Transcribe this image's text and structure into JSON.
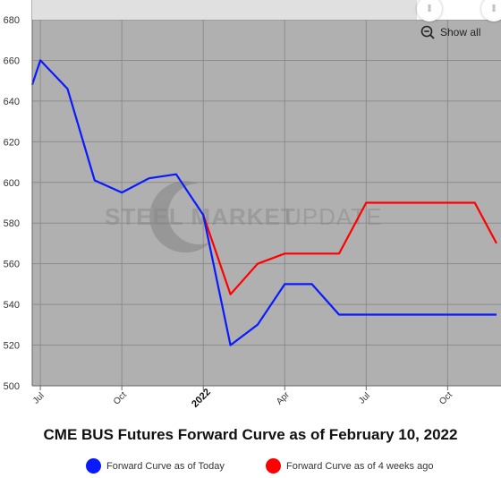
{
  "title": "CME BUS Futures Forward Curve as of February 10, 2022",
  "show_all_label": "Show all",
  "watermark": {
    "text_bold": "STEEL MARKET",
    "text_light": " UPDATE"
  },
  "colors": {
    "today": "#0a1aff",
    "four_weeks": "#ff0000",
    "plot_bg": "#b0b0b0",
    "grid": "#8c8c8c"
  },
  "chart_data": {
    "type": "line",
    "title": "CME BUS Futures Forward Curve as of February 10, 2022",
    "xlabel": "",
    "ylabel": "",
    "ylim": [
      500,
      680
    ],
    "y_ticks": [
      500,
      520,
      540,
      560,
      580,
      600,
      620,
      640,
      660,
      680
    ],
    "x_ticks": [
      {
        "label": "Jul",
        "month": 6,
        "bold": false
      },
      {
        "label": "Oct",
        "month": 9,
        "bold": false
      },
      {
        "label": "2022",
        "month": 12,
        "bold": true
      },
      {
        "label": "Apr",
        "month": 15,
        "bold": false
      },
      {
        "label": "Jul",
        "month": 18,
        "bold": false
      },
      {
        "label": "Oct",
        "month": 21,
        "bold": false
      }
    ],
    "x_range": [
      5.7,
      22.8
    ],
    "grid": true,
    "legend_position": "bottom",
    "series": [
      {
        "name": "Forward Curve as of Today",
        "key": "today",
        "points": [
          [
            5.7,
            648
          ],
          [
            6,
            660
          ],
          [
            7,
            646
          ],
          [
            8,
            601
          ],
          [
            9,
            595
          ],
          [
            10,
            602
          ],
          [
            11,
            604
          ],
          [
            12,
            584
          ],
          [
            13,
            520
          ],
          [
            14,
            530
          ],
          [
            15,
            550
          ],
          [
            16,
            550
          ],
          [
            17,
            535
          ],
          [
            18,
            535
          ],
          [
            19,
            535
          ],
          [
            20,
            535
          ],
          [
            21,
            535
          ],
          [
            22,
            535
          ],
          [
            22.8,
            535
          ]
        ]
      },
      {
        "name": "Forward Curve as of 4 weeks ago",
        "key": "four_weeks",
        "points": [
          [
            12,
            584
          ],
          [
            13,
            545
          ],
          [
            14,
            560
          ],
          [
            15,
            565
          ],
          [
            16,
            565
          ],
          [
            17,
            565
          ],
          [
            18,
            590
          ],
          [
            19,
            590
          ],
          [
            20,
            590
          ],
          [
            21,
            590
          ],
          [
            22,
            590
          ],
          [
            22.8,
            570
          ]
        ]
      }
    ]
  },
  "legend": [
    {
      "label": "Forward Curve as of Today",
      "color": "#0a1aff"
    },
    {
      "label": "Forward Curve as of 4 weeks ago",
      "color": "#ff0000"
    }
  ]
}
